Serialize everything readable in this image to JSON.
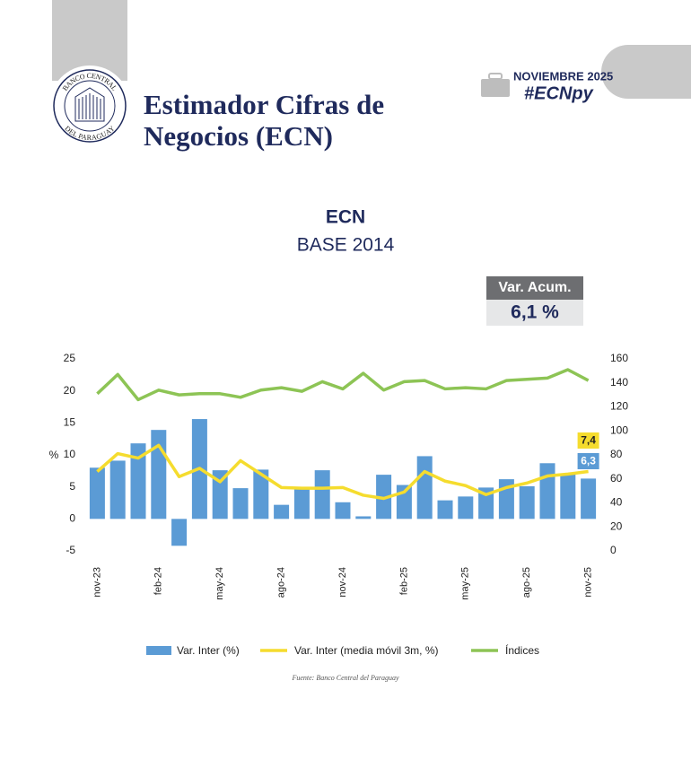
{
  "header": {
    "title_line1": "Estimador Cifras de",
    "title_line2": "Negocios (ECN)",
    "date": "NOVIEMBRE 2025",
    "hashtag": "#ECNpy",
    "logo_top": "BANCO CENTRAL",
    "logo_bottom": "DEL PARAGUAY"
  },
  "annotation": {
    "title": "Var. Acum.",
    "text": "6,1 %"
  },
  "source": "Fuente: Banco Central del Paraguay",
  "chart_data": {
    "type": "bar-line",
    "title": "ECN",
    "subtitle": "BASE 2014",
    "y_label": "%",
    "categories": [
      "nov-23",
      null,
      null,
      "feb-24",
      null,
      null,
      "may-24",
      null,
      null,
      "ago-24",
      null,
      null,
      "nov-24",
      null,
      null,
      "feb-25",
      null,
      null,
      "may-25",
      null,
      null,
      "ago-25",
      null,
      null,
      "nov-25"
    ],
    "ylim": [
      -5,
      25
    ],
    "yticks": [
      -5,
      0,
      5,
      10,
      15,
      20,
      25
    ],
    "y2lim": [
      0,
      160
    ],
    "y2ticks": [
      0,
      20,
      40,
      60,
      80,
      100,
      120,
      140,
      160
    ],
    "series": [
      {
        "name": "Var. Inter (%)",
        "type": "bar",
        "color": "#5b9bd5",
        "values": [
          8.0,
          9.1,
          11.8,
          13.9,
          -4.2,
          15.6,
          7.6,
          4.8,
          7.7,
          2.2,
          4.8,
          7.6,
          2.6,
          0.4,
          6.9,
          5.3,
          9.8,
          2.9,
          3.5,
          4.9,
          6.2,
          5.1,
          8.7,
          7.0,
          6.3
        ],
        "value_labels": [
          null,
          null,
          null,
          null,
          null,
          null,
          null,
          null,
          null,
          null,
          null,
          null,
          null,
          null,
          null,
          null,
          null,
          null,
          null,
          null,
          null,
          null,
          null,
          null,
          "6,3"
        ]
      },
      {
        "name": "Var. Inter (media móvil 3m, %)",
        "type": "line",
        "color": "#f5dc2e",
        "values": [
          7.4,
          10.2,
          9.5,
          11.5,
          6.6,
          7.9,
          5.8,
          9.1,
          7.0,
          4.9,
          4.8,
          4.8,
          4.9,
          3.7,
          3.2,
          4.2,
          7.4,
          5.9,
          5.2,
          3.8,
          4.9,
          5.6,
          6.7,
          7.0,
          7.4
        ],
        "value_labels": [
          null,
          null,
          null,
          null,
          null,
          null,
          null,
          null,
          null,
          null,
          null,
          null,
          null,
          null,
          null,
          null,
          null,
          null,
          null,
          null,
          null,
          null,
          null,
          null,
          "7,4"
        ]
      },
      {
        "name": "Índices",
        "type": "line",
        "axis": "y2",
        "color": "#8dc455",
        "values": [
          131,
          147,
          126,
          134,
          130,
          131,
          131,
          128,
          134,
          136,
          133,
          141,
          135,
          148,
          134,
          141,
          142,
          135,
          136,
          135,
          142,
          143,
          144,
          151,
          142
        ]
      }
    ]
  }
}
